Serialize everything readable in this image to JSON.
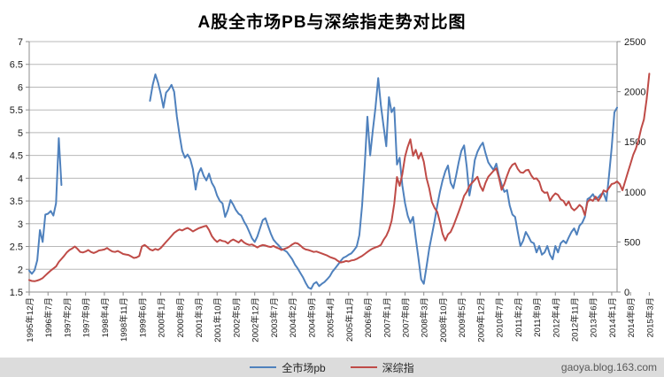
{
  "title": "A股全市场PB与深综指走势对比图",
  "watermark": "gaoya.blog.163.com",
  "legend": [
    {
      "label": "全市场pb",
      "color": "#4f81bd"
    },
    {
      "label": "深综指",
      "color": "#bf4b47"
    }
  ],
  "colors": {
    "grid": "#b8b8b8",
    "axis": "#8c8c8c",
    "text": "#1a1a1a",
    "footer_bg": "#dcdcdc",
    "watermark_text": "#595959",
    "pb_line": "#4f81bd",
    "index_line": "#bf4b47"
  },
  "chart_data": {
    "type": "line",
    "title": "A股全市场PB与深综指走势对比图",
    "x_unit": "month",
    "x_start_label": "1995年12月",
    "x_end_label": "2015年3月",
    "x_tick_every_months": 7,
    "x_tick_labels": [
      "1995年12月",
      "1996年7月",
      "1997年2月",
      "1997年9月",
      "1998年4月",
      "1998年11月",
      "1999年6月",
      "2000年1月",
      "2000年8月",
      "2001年3月",
      "2001年10月",
      "2002年5月",
      "2002年12月",
      "2003年7月",
      "2004年2月",
      "2004年9月",
      "2005年4月",
      "2005年11月",
      "2006年6月",
      "2007年1月",
      "2007年8月",
      "2008年3月",
      "2008年10月",
      "2009年5月",
      "2009年12月",
      "2010年7月",
      "2011年2月",
      "2011年9月",
      "2012年4月",
      "2012年11月",
      "2013年6月",
      "2014年1月",
      "2014年8月",
      "2015年3月"
    ],
    "left_axis": {
      "min": 1.5,
      "max": 7,
      "step": 0.5,
      "tick_labels": [
        "7",
        "6.5",
        "6",
        "5.5",
        "5",
        "4.5",
        "4",
        "3.5",
        "3",
        "2.5",
        "2",
        "1.5"
      ]
    },
    "right_axis": {
      "min": 0,
      "max": 2500,
      "step": 500,
      "tick_labels": [
        "2500",
        "2000",
        "1500",
        "1000",
        "500",
        "0"
      ]
    },
    "grid": true,
    "legend_position": "bottom",
    "series": [
      {
        "name": "全市场pb",
        "axis": "left",
        "color": "#4f81bd",
        "values": [
          1.97,
          1.9,
          1.98,
          2.2,
          2.86,
          2.6,
          3.2,
          3.22,
          3.28,
          3.18,
          3.45,
          4.88,
          3.85,
          null,
          null,
          null,
          null,
          null,
          null,
          null,
          null,
          null,
          null,
          null,
          null,
          null,
          null,
          null,
          null,
          null,
          null,
          null,
          null,
          null,
          null,
          null,
          null,
          null,
          null,
          null,
          null,
          null,
          null,
          null,
          null,
          5.7,
          6.05,
          6.28,
          6.1,
          5.85,
          5.55,
          5.88,
          5.95,
          6.05,
          5.9,
          5.35,
          4.95,
          4.6,
          4.45,
          4.52,
          4.42,
          4.2,
          3.75,
          4.1,
          4.22,
          4.05,
          3.95,
          4.1,
          3.9,
          3.8,
          3.62,
          3.5,
          3.45,
          3.15,
          3.3,
          3.52,
          3.42,
          3.3,
          3.22,
          3.18,
          3.05,
          2.95,
          2.82,
          2.68,
          2.6,
          2.72,
          2.9,
          3.08,
          3.12,
          2.95,
          2.78,
          2.65,
          2.58,
          2.52,
          2.45,
          2.42,
          2.38,
          2.3,
          2.22,
          2.1,
          2.02,
          1.92,
          1.82,
          1.7,
          1.6,
          1.57,
          1.68,
          1.72,
          1.63,
          1.68,
          1.72,
          1.78,
          1.85,
          1.95,
          2.02,
          2.1,
          2.18,
          2.25,
          2.28,
          2.32,
          2.35,
          2.42,
          2.5,
          2.75,
          3.4,
          4.3,
          5.35,
          4.5,
          5.05,
          5.55,
          6.2,
          5.6,
          5.15,
          4.7,
          5.78,
          5.45,
          5.55,
          4.3,
          4.45,
          3.85,
          3.45,
          3.18,
          3.02,
          3.15,
          2.68,
          2.25,
          1.78,
          1.68,
          2.05,
          2.45,
          2.75,
          3.05,
          3.4,
          3.7,
          3.95,
          4.15,
          4.28,
          3.9,
          3.78,
          4.05,
          4.35,
          4.6,
          4.72,
          4.25,
          3.62,
          3.95,
          4.4,
          4.58,
          4.7,
          4.78,
          4.55,
          4.35,
          4.26,
          4.18,
          4.32,
          4.05,
          3.86,
          3.7,
          3.74,
          3.4,
          3.2,
          3.15,
          2.82,
          2.51,
          2.63,
          2.82,
          2.72,
          2.6,
          2.57,
          2.37,
          2.51,
          2.32,
          2.37,
          2.51,
          2.32,
          2.22,
          2.51,
          2.37,
          2.57,
          2.63,
          2.57,
          2.7,
          2.82,
          2.9,
          2.76,
          2.96,
          3.02,
          3.15,
          3.54,
          3.58,
          3.65,
          3.54,
          3.58,
          3.65,
          3.67,
          3.5,
          4.06,
          4.67,
          5.45,
          5.55
        ]
      },
      {
        "name": "深综指",
        "axis": "right",
        "color": "#bf4b47",
        "values": [
          120,
          110,
          108,
          115,
          125,
          140,
          165,
          190,
          215,
          235,
          255,
          300,
          330,
          360,
          395,
          420,
          435,
          455,
          430,
          400,
          395,
          405,
          420,
          400,
          390,
          400,
          415,
          420,
          425,
          440,
          420,
          405,
          400,
          410,
          395,
          380,
          375,
          370,
          355,
          340,
          345,
          360,
          455,
          470,
          450,
          425,
          415,
          430,
          420,
          440,
          470,
          500,
          530,
          560,
          590,
          610,
          625,
          615,
          630,
          640,
          625,
          605,
          620,
          635,
          645,
          655,
          662,
          620,
          560,
          525,
          500,
          520,
          510,
          505,
          485,
          510,
          525,
          510,
          495,
          520,
          495,
          480,
          470,
          475,
          460,
          445,
          460,
          470,
          465,
          455,
          450,
          460,
          445,
          435,
          420,
          430,
          440,
          455,
          475,
          490,
          485,
          465,
          440,
          425,
          420,
          410,
          400,
          405,
          395,
          385,
          375,
          365,
          350,
          340,
          330,
          310,
          295,
          300,
          310,
          305,
          315,
          320,
          330,
          345,
          360,
          380,
          400,
          420,
          435,
          445,
          455,
          470,
          520,
          560,
          620,
          710,
          880,
          1148,
          1060,
          1175,
          1352,
          1450,
          1525,
          1360,
          1420,
          1330,
          1390,
          1300,
          1140,
          1035,
          900,
          840,
          800,
          700,
          580,
          515,
          575,
          600,
          660,
          730,
          800,
          875,
          960,
          1000,
          1060,
          1090,
          1120,
          1150,
          1060,
          1010,
          1090,
          1150,
          1180,
          1210,
          1235,
          1140,
          1020,
          1080,
          1160,
          1230,
          1270,
          1285,
          1230,
          1195,
          1190,
          1215,
          1220,
          1165,
          1130,
          1135,
          1100,
          1015,
          990,
          995,
          910,
          955,
          985,
          970,
          925,
          910,
          865,
          905,
          840,
          815,
          838,
          870,
          845,
          768,
          900,
          925,
          910,
          952,
          910,
          952,
          1015,
          1000,
          1040,
          1078,
          1086,
          1104,
          1078,
          1016,
          1104,
          1193,
          1281,
          1369,
          1431,
          1519,
          1634,
          1722,
          1925,
          2180
        ]
      }
    ]
  }
}
